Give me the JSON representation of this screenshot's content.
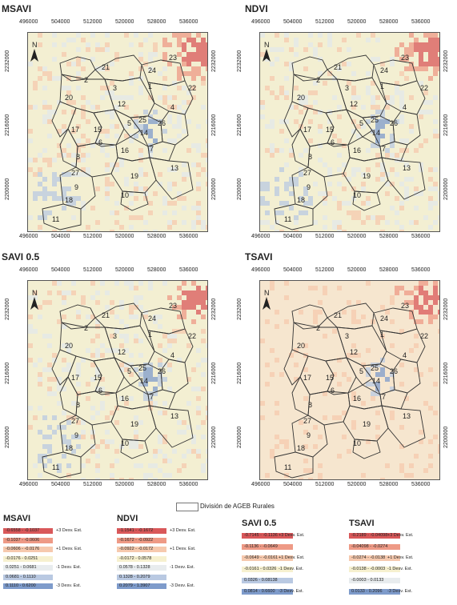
{
  "panels": [
    {
      "title": "MSAVI"
    },
    {
      "title": "NDVI"
    },
    {
      "title": "SAVI 0.5"
    },
    {
      "title": "TSAVI"
    }
  ],
  "x_ticks": [
    "496000",
    "504000",
    "512000",
    "520000",
    "528000",
    "536000"
  ],
  "y_ticks": [
    "2232000",
    "2216000",
    "2200000"
  ],
  "north_label": "N",
  "region_numbers": [
    "1",
    "2",
    "3",
    "4",
    "5",
    "6",
    "7",
    "8",
    "9",
    "10",
    "11",
    "12",
    "13",
    "14",
    "15",
    "16",
    "17",
    "18",
    "19",
    "20",
    "21",
    "22",
    "23",
    "24",
    "25",
    "26",
    "27"
  ],
  "ageb_label": "División de AGEB Rurales",
  "legends": [
    {
      "title": "MSAVI",
      "rows": [
        {
          "range": "-0.6558 - -0.1037",
          "color": "#d9585a"
        },
        {
          "range": "-0.1037 - -0.0606",
          "color": "#ee9a86"
        },
        {
          "range": "-0.0606 - -0.0176",
          "color": "#f6c9ae"
        },
        {
          "range": "-0.0176 - 0.0251",
          "color": "#f6f0cf"
        },
        {
          "range": "0.0251 - 0.0681",
          "color": "#e8ecee"
        },
        {
          "range": "0.0681 - 0.1110",
          "color": "#b9c9e2"
        },
        {
          "range": "0.1110 - 0.6200",
          "color": "#7e9bcb"
        }
      ]
    },
    {
      "title": "NDVI",
      "rows": [
        {
          "range": "-1.1541 - -0.1672",
          "color": "#d9585a"
        },
        {
          "range": "-0.1672 - -0.0922",
          "color": "#ee9a86"
        },
        {
          "range": "-0.0922 - -0.0172",
          "color": "#f6c9ae"
        },
        {
          "range": "-0.0172 - 0.0578",
          "color": "#f6f0cf"
        },
        {
          "range": "0.0578 - 0.1328",
          "color": "#e8ecee"
        },
        {
          "range": "0.1328 - 0.2079",
          "color": "#b9c9e2"
        },
        {
          "range": "0.2079 - 1.3907",
          "color": "#7e9bcb"
        }
      ]
    },
    {
      "title": "SAVI 0.5",
      "rows": [
        {
          "range": "-0.7145 - -0.1136",
          "color": "#d9585a"
        },
        {
          "range": "-0.1136 - -0.0649",
          "color": "#ee9a86"
        },
        {
          "range": "-0.0649 - -0.0161",
          "color": "#f6c9ae"
        },
        {
          "range": "-0.0161 - 0.0326",
          "color": "#f6f0cf"
        },
        {
          "range": "0.0326 - 0.08138",
          "color": "#b9c9e2"
        },
        {
          "range": "0.0814 - 0.6600",
          "color": "#7e9bcb"
        }
      ]
    },
    {
      "title": "TSAVI",
      "rows": [
        {
          "range": "-0.2189 - -0.04098",
          "color": "#d9585a"
        },
        {
          "range": "-0.04098 - -0.0274",
          "color": "#ee9a86"
        },
        {
          "range": "-0.0274 - -0.0138",
          "color": "#f6c9ae"
        },
        {
          "range": "-0.0138 - -0.0003",
          "color": "#f6f0cf"
        },
        {
          "range": "-0.0003 - 0.0133",
          "color": "#e8ecee"
        },
        {
          "range": "0.0133 - 0.2096",
          "color": "#7e9bcb"
        }
      ]
    }
  ],
  "dev_labels_7": [
    "+3 Desv. Est.",
    "",
    "+1 Desv. Est.",
    "",
    "-1 Desv. Est.",
    "",
    "-3 Desv. Est."
  ],
  "dev_labels_6": [
    "+3 Desv. Est.",
    "",
    "+1 Desv. Est.",
    "-1 Desv. Est.",
    "",
    "-3 Desv. Est."
  ]
}
